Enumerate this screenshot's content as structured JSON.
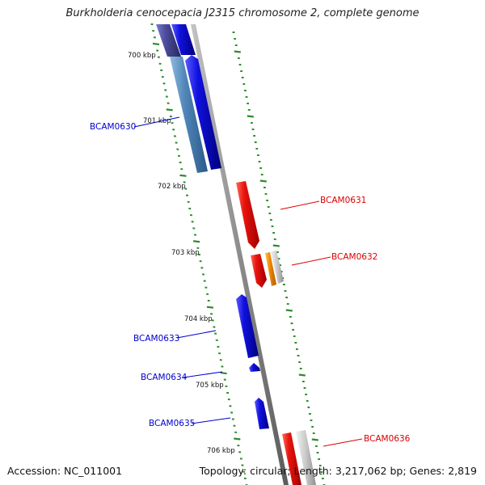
{
  "title": "Burkholderia cenocepacia J2315 chromosome 2, complete genome",
  "footer": {
    "accession": "Accession: NC_011001",
    "summary": "Topology: circular; Length: 3,217,062 bp; Genes: 2,819"
  },
  "colors": {
    "backbone": "#8c8c8c",
    "tick": "#2e8b2e",
    "forward_label": "#dd0000",
    "reverse_label": "#0000cc",
    "gene_red": "#e8140c",
    "gene_blue": "#1010e0",
    "gene_orange": "#f08c00",
    "gene_gray": "#c8c8c8",
    "gene_steel": "#4f86b8",
    "gene_slate": "#4a4a9a"
  },
  "ticks": [
    "700 kbp",
    "701 kbp",
    "702 kbp",
    "703 kbp",
    "704 kbp",
    "705 kbp",
    "706 kbp"
  ],
  "gene_labels": {
    "BCAM0630": "BCAM0630",
    "BCAM0631": "BCAM0631",
    "BCAM0632": "BCAM0632",
    "BCAM0633": "BCAM0633",
    "BCAM0634": "BCAM0634",
    "BCAM0635": "BCAM0635",
    "BCAM0636": "BCAM0636"
  }
}
